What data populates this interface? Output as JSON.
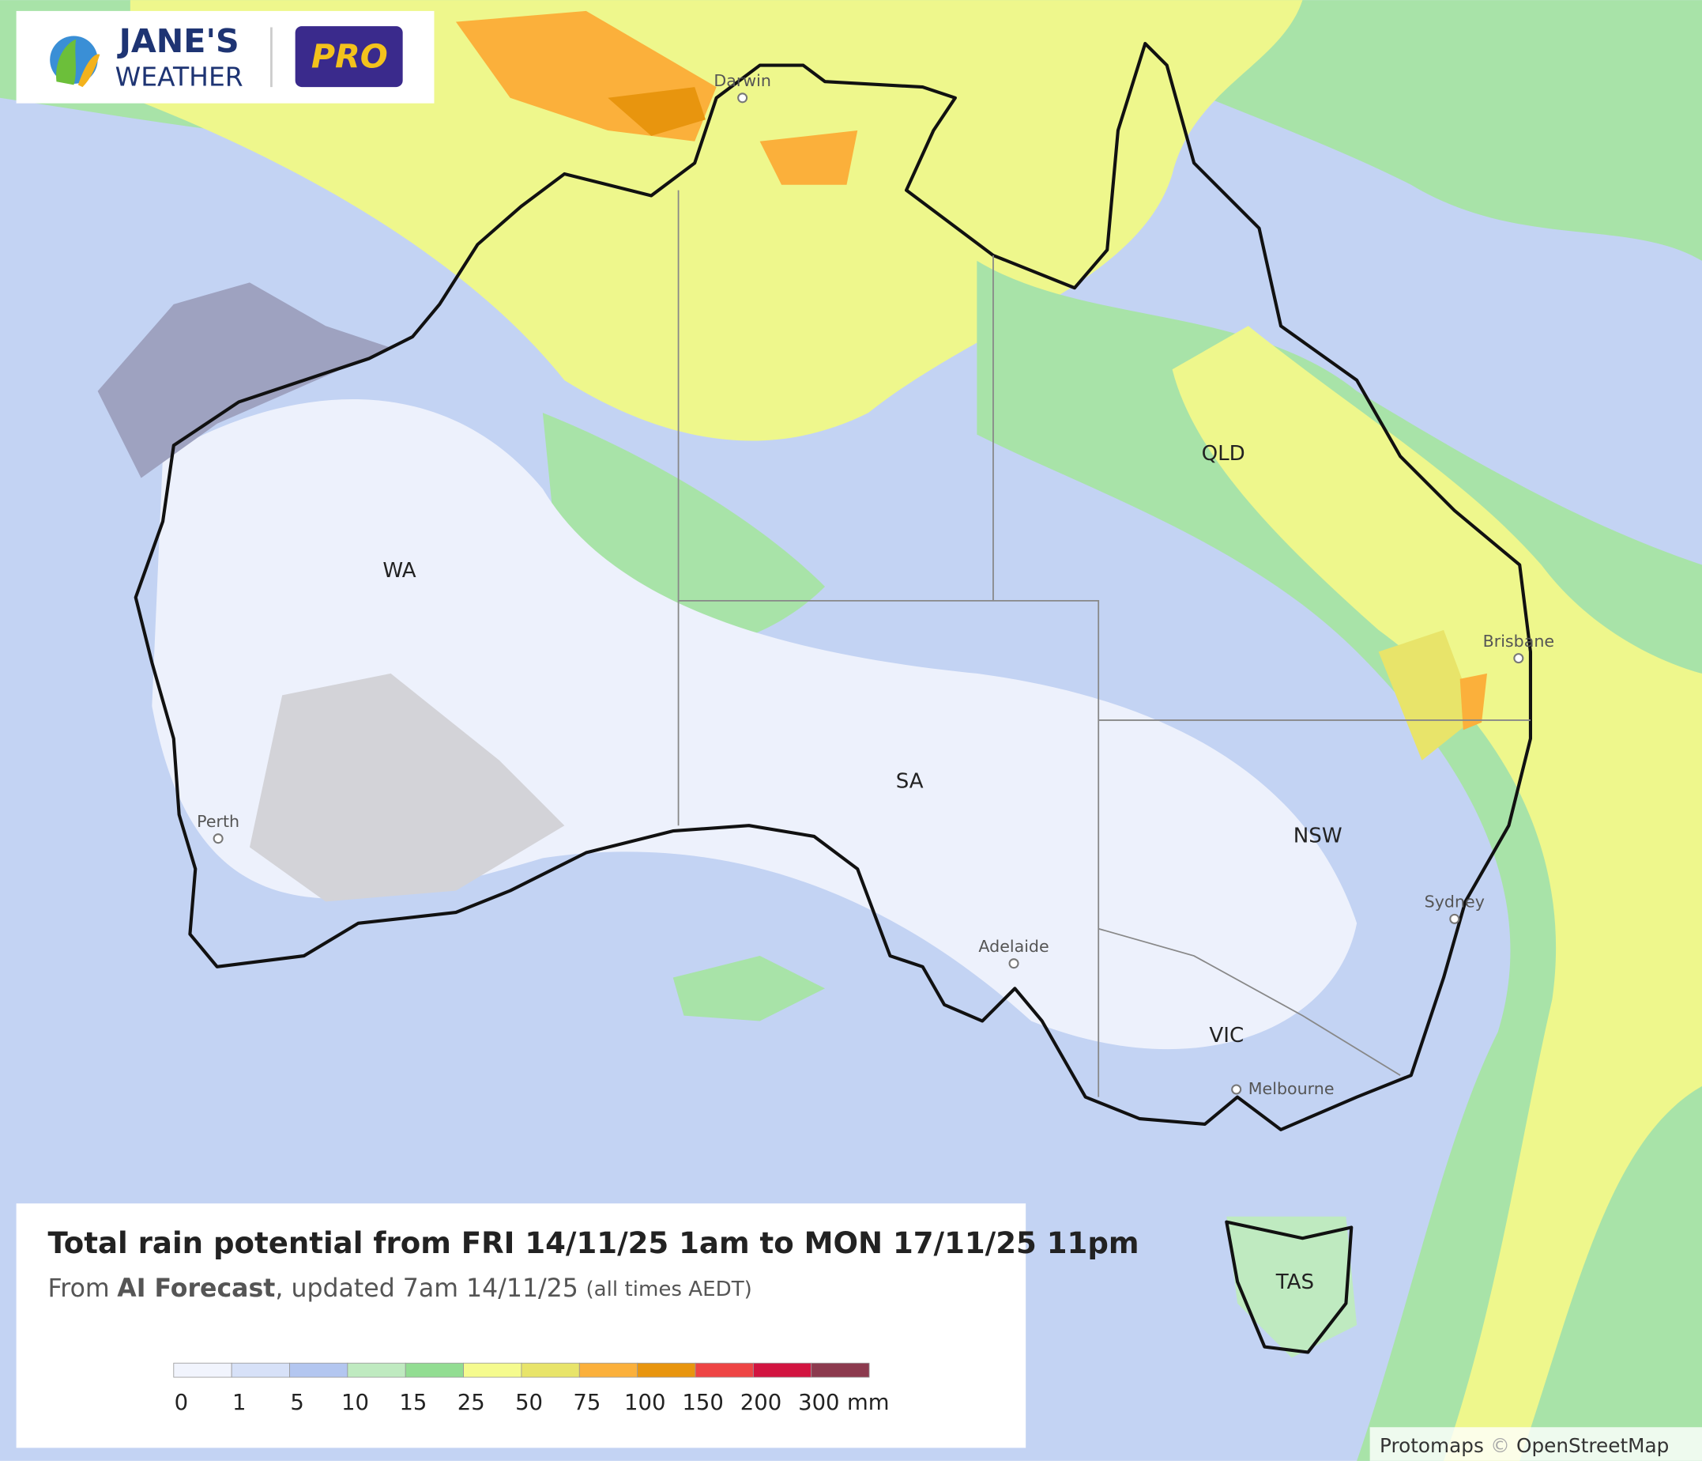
{
  "logo": {
    "name_line1": "JANE'S",
    "name_line2": "WEATHER",
    "badge": "PRO"
  },
  "map": {
    "labels": {
      "darwin": "Darwin",
      "wa": "WA",
      "qld": "QLD",
      "sa": "SA",
      "nsw": "NSW",
      "vic": "VIC",
      "tas": "TAS",
      "brisbane": "Brisbane",
      "perth": "Perth",
      "sydney": "Sydney",
      "adelaide": "Adelaide",
      "melbourne": "Melbourne"
    }
  },
  "panel": {
    "title": "Total rain potential from FRI 14/11/25 1am to MON 17/11/25 11pm",
    "subtitle": {
      "prefix": "From",
      "source": "AI Forecast",
      "updated": ", updated 7am 14/11/25",
      "note": "(all times AEDT)"
    },
    "legend": {
      "bins": [
        0,
        1,
        5,
        10,
        15,
        25,
        50,
        75,
        100,
        150,
        200,
        300
      ],
      "unit": "mm",
      "colors": [
        "#f1f4fd",
        "#d7e1f8",
        "#b3c6f0",
        "#bfeac0",
        "#92dd92",
        "#f5fb8e",
        "#e8e46a",
        "#fbb03b",
        "#e8950e",
        "#ee4444",
        "#d21440",
        "#8c3a4e"
      ]
    }
  },
  "attribution": {
    "source1": "Protomaps",
    "sep": "©",
    "source2": "OpenStreetMap"
  }
}
